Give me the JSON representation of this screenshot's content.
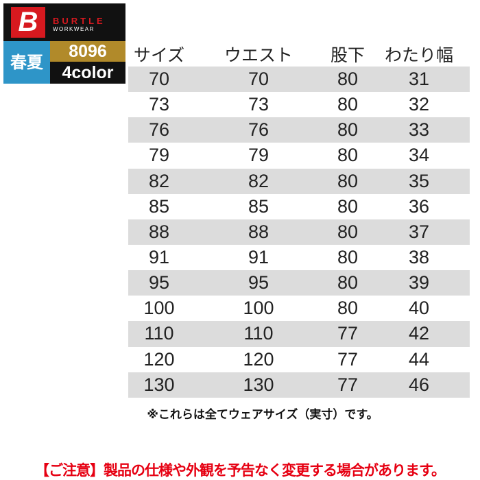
{
  "logo": {
    "mark": "B",
    "brand": "BURTLE",
    "sub": "WORKWEAR",
    "season": "春夏",
    "code": "8096",
    "colors": "4color"
  },
  "colors": {
    "brand_red": "#d7191f",
    "season_blue": "#2e95c8",
    "gold": "#b18a2a",
    "caution_red": "#e60012",
    "stripe": "#dcdcdc"
  },
  "table": {
    "headers": [
      "サイズ",
      "ウエスト",
      "股下",
      "わたり幅"
    ],
    "rows": [
      [
        "70",
        "70",
        "80",
        "31"
      ],
      [
        "73",
        "73",
        "80",
        "32"
      ],
      [
        "76",
        "76",
        "80",
        "33"
      ],
      [
        "79",
        "79",
        "80",
        "34"
      ],
      [
        "82",
        "82",
        "80",
        "35"
      ],
      [
        "85",
        "85",
        "80",
        "36"
      ],
      [
        "88",
        "88",
        "80",
        "37"
      ],
      [
        "91",
        "91",
        "80",
        "38"
      ],
      [
        "95",
        "95",
        "80",
        "39"
      ],
      [
        "100",
        "100",
        "80",
        "40"
      ],
      [
        "110",
        "110",
        "77",
        "42"
      ],
      [
        "120",
        "120",
        "77",
        "44"
      ],
      [
        "130",
        "130",
        "77",
        "46"
      ]
    ]
  },
  "note": "※これらは全てウェアサイズ（実寸）です。",
  "caution": "【ご注意】製品の仕様や外観を予告なく変更する場合があります。"
}
